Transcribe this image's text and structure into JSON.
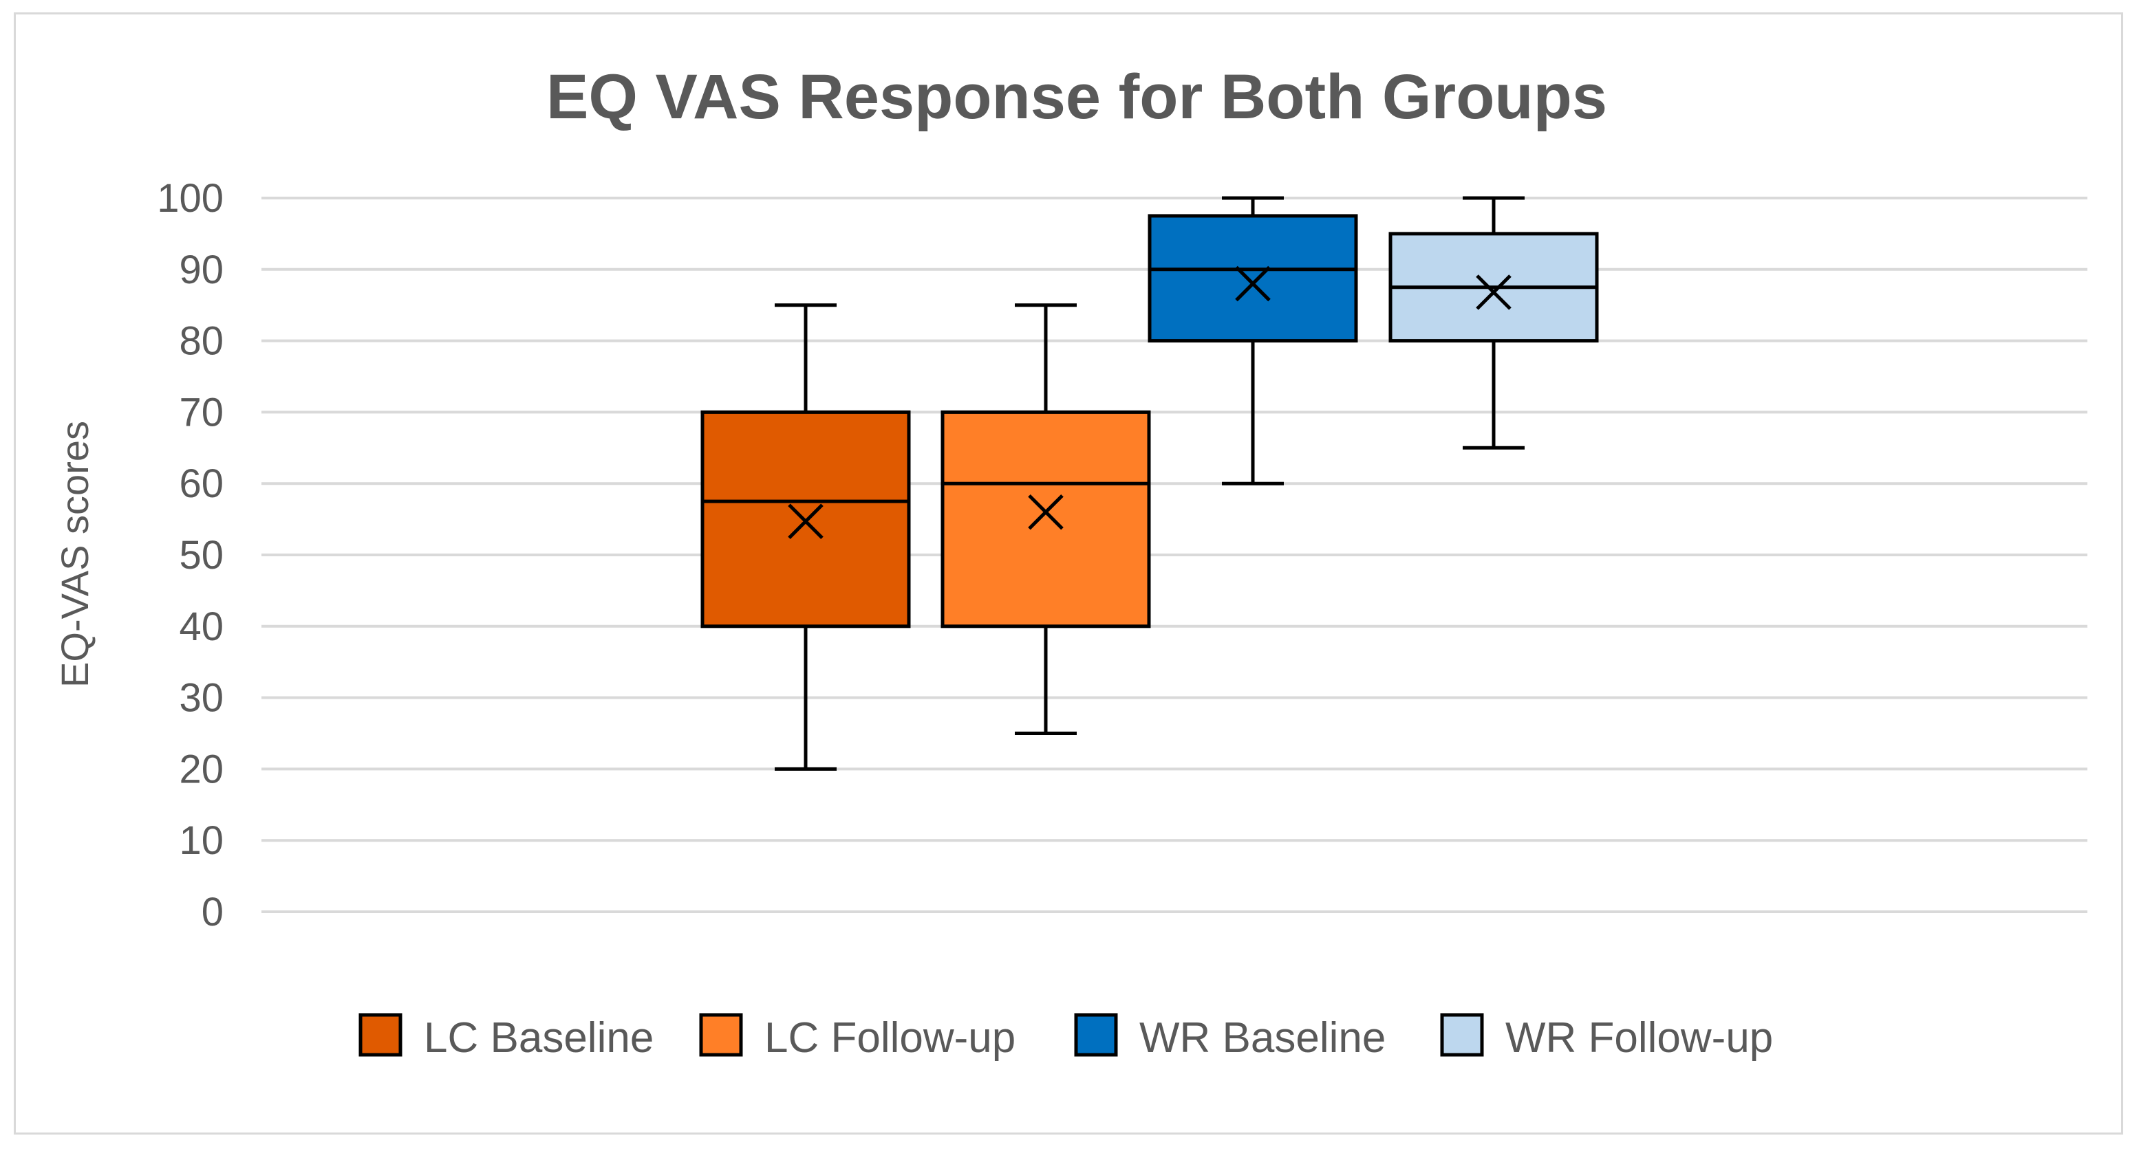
{
  "chart_data": {
    "type": "box",
    "title": "EQ VAS Response for Both Groups",
    "ylabel": "EQ-VAS scores",
    "ylim": [
      0,
      100
    ],
    "y_ticks": [
      "0",
      "10",
      "20",
      "30",
      "40",
      "50",
      "60",
      "70",
      "80",
      "90",
      "100"
    ],
    "grid": true,
    "legend_position": "bottom",
    "series": [
      {
        "name": "LC Baseline",
        "color": "#E05A00",
        "min": 20,
        "q1": 40,
        "median": 57.5,
        "q3": 70,
        "max": 85,
        "mean": 54.7
      },
      {
        "name": "LC Follow-up",
        "color": "#FF7F27",
        "min": 25,
        "q1": 40,
        "median": 60,
        "q3": 70,
        "max": 85,
        "mean": 56
      },
      {
        "name": "WR Baseline",
        "color": "#0070C0",
        "min": 60,
        "q1": 80,
        "median": 90,
        "q3": 97.5,
        "max": 100,
        "mean": 88
      },
      {
        "name": "WR Follow-up",
        "color": "#BDD7EE",
        "min": 65,
        "q1": 80,
        "median": 87.5,
        "q3": 95,
        "max": 100,
        "mean": 86.8
      }
    ]
  }
}
